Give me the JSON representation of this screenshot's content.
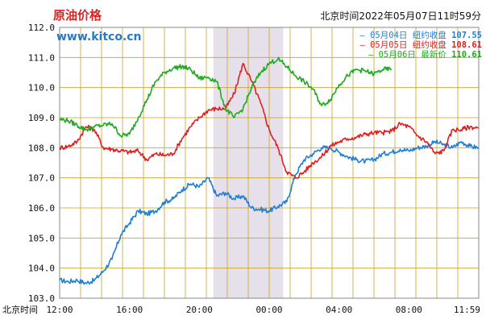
{
  "title": "原油价格",
  "site": "www.kitco.cn",
  "timestamp": "北京时间2022年05月07日11时59分",
  "axis_label": "北京时间",
  "chart_data": {
    "type": "line",
    "title": "原油价格",
    "xlabel": "北京时间",
    "ylabel": "",
    "ylim": [
      103.0,
      112.0
    ],
    "y_ticks": [
      "112.0",
      "111.0",
      "110.0",
      "109.0",
      "108.0",
      "107.0",
      "106.0",
      "105.0",
      "104.0",
      "103.0"
    ],
    "x_ticks": [
      {
        "label": "12:00",
        "hour": 0
      },
      {
        "label": "16:00",
        "hour": 4
      },
      {
        "label": "20:00",
        "hour": 8
      },
      {
        "label": "00:00",
        "hour": 12
      },
      {
        "label": "04:00",
        "hour": 16
      },
      {
        "label": "08:00",
        "hour": 20
      },
      {
        "label": "11:59",
        "hour": 23.98
      }
    ],
    "grid": true,
    "shaded_hours": [
      8.8,
      12.8
    ],
    "legend_position": "top-right",
    "series": [
      {
        "name": "05月04日",
        "legend_label": "纽约收盘",
        "legend_value": "107.55",
        "color": "#1e7fd6",
        "points": [
          [
            0,
            103.6
          ],
          [
            0.5,
            103.55
          ],
          [
            1,
            103.6
          ],
          [
            1.5,
            103.5
          ],
          [
            2,
            103.6
          ],
          [
            2.5,
            103.9
          ],
          [
            3,
            104.3
          ],
          [
            3.5,
            105.1
          ],
          [
            4,
            105.5
          ],
          [
            4.5,
            105.9
          ],
          [
            5,
            105.8
          ],
          [
            5.5,
            105.9
          ],
          [
            6,
            106.2
          ],
          [
            6.5,
            106.3
          ],
          [
            7,
            106.6
          ],
          [
            7.5,
            106.8
          ],
          [
            8,
            106.7
          ],
          [
            8.5,
            107.0
          ],
          [
            9,
            106.4
          ],
          [
            9.5,
            106.5
          ],
          [
            10,
            106.3
          ],
          [
            10.5,
            106.4
          ],
          [
            11,
            106.0
          ],
          [
            11.5,
            105.95
          ],
          [
            12,
            105.9
          ],
          [
            12.5,
            106.05
          ],
          [
            13,
            106.2
          ],
          [
            13.5,
            107.1
          ],
          [
            14,
            107.6
          ],
          [
            14.5,
            107.8
          ],
          [
            15,
            108.0
          ],
          [
            15.5,
            108.0
          ],
          [
            16,
            107.85
          ],
          [
            16.5,
            107.7
          ],
          [
            17,
            107.6
          ],
          [
            17.5,
            107.55
          ],
          [
            18,
            107.6
          ],
          [
            18.5,
            107.8
          ],
          [
            19,
            107.85
          ],
          [
            19.5,
            107.95
          ],
          [
            20,
            107.9
          ],
          [
            20.5,
            108.0
          ],
          [
            21,
            108.05
          ],
          [
            21.5,
            108.2
          ],
          [
            22,
            108.1
          ],
          [
            22.5,
            108.0
          ],
          [
            23,
            108.2
          ],
          [
            23.5,
            108.05
          ],
          [
            24,
            108.0
          ]
        ]
      },
      {
        "name": "05月05日",
        "legend_label": "纽约收盘",
        "legend_value": "108.61",
        "color": "#e02020",
        "points": [
          [
            0,
            108.0
          ],
          [
            0.5,
            108.05
          ],
          [
            1,
            108.2
          ],
          [
            1.5,
            108.7
          ],
          [
            2,
            108.6
          ],
          [
            2.5,
            108.0
          ],
          [
            3,
            107.95
          ],
          [
            3.5,
            107.9
          ],
          [
            4,
            107.85
          ],
          [
            4.5,
            107.9
          ],
          [
            5,
            107.6
          ],
          [
            5.5,
            107.8
          ],
          [
            6,
            107.75
          ],
          [
            6.5,
            107.8
          ],
          [
            7,
            108.3
          ],
          [
            7.5,
            108.7
          ],
          [
            8,
            109.0
          ],
          [
            8.5,
            109.25
          ],
          [
            9,
            109.3
          ],
          [
            9.5,
            109.3
          ],
          [
            10,
            109.8
          ],
          [
            10.5,
            110.8
          ],
          [
            11,
            110.2
          ],
          [
            11.5,
            109.5
          ],
          [
            12,
            108.6
          ],
          [
            12.5,
            108.0
          ],
          [
            13,
            107.2
          ],
          [
            13.5,
            107.0
          ],
          [
            14,
            107.2
          ],
          [
            14.5,
            107.5
          ],
          [
            15,
            107.7
          ],
          [
            15.5,
            108.05
          ],
          [
            16,
            108.2
          ],
          [
            16.5,
            108.3
          ],
          [
            17,
            108.35
          ],
          [
            17.5,
            108.45
          ],
          [
            18,
            108.5
          ],
          [
            18.5,
            108.5
          ],
          [
            19,
            108.55
          ],
          [
            19.5,
            108.8
          ],
          [
            20,
            108.7
          ],
          [
            20.5,
            108.4
          ],
          [
            21,
            108.2
          ],
          [
            21.5,
            107.8
          ],
          [
            22,
            107.9
          ],
          [
            22.5,
            108.6
          ],
          [
            23,
            108.6
          ],
          [
            23.5,
            108.7
          ],
          [
            24,
            108.65
          ]
        ]
      },
      {
        "name": "05月06日",
        "legend_label": "最新价",
        "legend_value": "110.61",
        "color": "#1eaa1e",
        "points": [
          [
            0,
            108.95
          ],
          [
            0.5,
            108.9
          ],
          [
            1,
            108.75
          ],
          [
            1.5,
            108.6
          ],
          [
            2,
            108.7
          ],
          [
            2.5,
            108.75
          ],
          [
            3,
            108.8
          ],
          [
            3.5,
            108.4
          ],
          [
            4,
            108.45
          ],
          [
            4.5,
            109.0
          ],
          [
            5,
            109.6
          ],
          [
            5.5,
            110.2
          ],
          [
            6,
            110.5
          ],
          [
            6.5,
            110.65
          ],
          [
            7,
            110.7
          ],
          [
            7.5,
            110.6
          ],
          [
            8,
            110.3
          ],
          [
            8.5,
            110.35
          ],
          [
            9,
            110.2
          ],
          [
            9.5,
            109.3
          ],
          [
            10,
            109.0
          ],
          [
            10.5,
            109.3
          ],
          [
            11,
            110.0
          ],
          [
            11.5,
            110.5
          ],
          [
            12,
            110.8
          ],
          [
            12.5,
            110.95
          ],
          [
            13,
            110.7
          ],
          [
            13.5,
            110.4
          ],
          [
            14,
            110.2
          ],
          [
            14.5,
            109.95
          ],
          [
            15,
            109.4
          ],
          [
            15.5,
            109.6
          ],
          [
            16,
            110.1
          ],
          [
            16.5,
            110.4
          ],
          [
            17,
            110.6
          ],
          [
            17.5,
            110.55
          ],
          [
            18,
            110.45
          ],
          [
            18.5,
            110.6
          ],
          [
            19,
            110.61
          ]
        ]
      }
    ]
  }
}
